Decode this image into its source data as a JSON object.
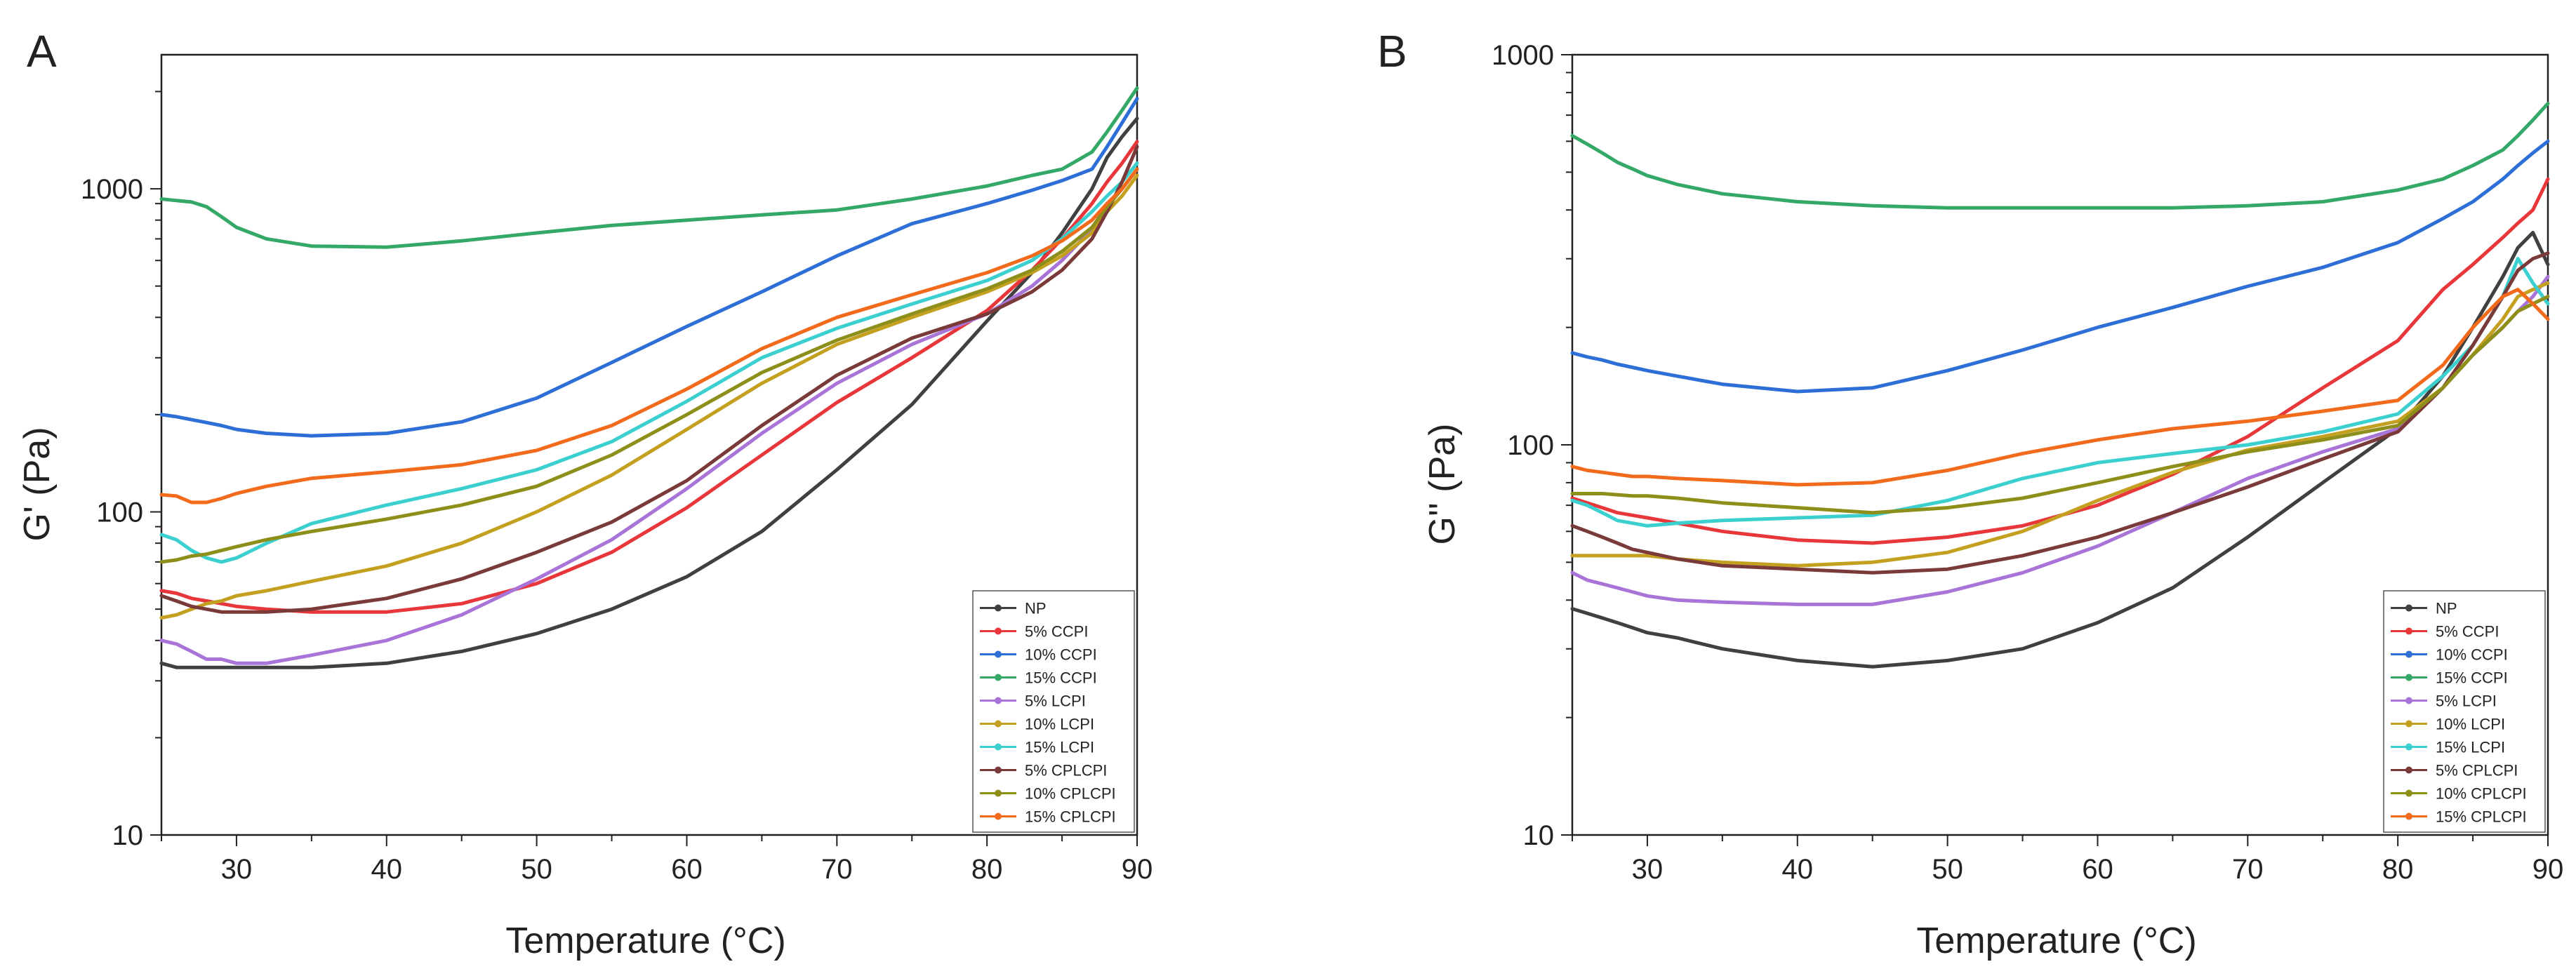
{
  "chart_data": [
    {
      "type": "line",
      "panel_label": "A",
      "xlabel": "Temperature (°C)",
      "ylabel": "G' (Pa)",
      "xlim": [
        25,
        90
      ],
      "ylim": [
        10,
        2600
      ],
      "yscale": "log",
      "x_ticks": [
        30,
        40,
        50,
        60,
        70,
        80,
        90
      ],
      "y_ticks": [
        10,
        100,
        1000
      ],
      "legend_position": "bottom-right",
      "x": [
        25,
        26,
        27,
        28,
        29,
        30,
        32,
        35,
        40,
        45,
        50,
        55,
        60,
        65,
        70,
        75,
        80,
        83,
        85,
        87,
        88,
        89,
        90
      ],
      "series": [
        {
          "name": "NP",
          "color": "#404040",
          "values": [
            34,
            33,
            33,
            33,
            33,
            33,
            33,
            33,
            34,
            37,
            42,
            50,
            63,
            87,
            135,
            215,
            390,
            550,
            730,
            1000,
            1250,
            1450,
            1650
          ]
        },
        {
          "name": "5% CCPI",
          "color": "#e8373b",
          "values": [
            57,
            56,
            54,
            53,
            52,
            51,
            50,
            49,
            49,
            52,
            60,
            75,
            103,
            150,
            218,
            300,
            420,
            560,
            700,
            900,
            1050,
            1200,
            1400
          ]
        },
        {
          "name": "10% CCPI",
          "color": "#2d6fd6",
          "values": [
            200,
            197,
            193,
            189,
            185,
            180,
            175,
            172,
            175,
            190,
            225,
            290,
            375,
            480,
            620,
            780,
            900,
            990,
            1060,
            1150,
            1350,
            1600,
            1900
          ]
        },
        {
          "name": "15% CCPI",
          "color": "#33a867",
          "values": [
            930,
            920,
            910,
            880,
            820,
            760,
            700,
            665,
            660,
            690,
            730,
            770,
            800,
            830,
            860,
            930,
            1020,
            1100,
            1150,
            1300,
            1500,
            1750,
            2050
          ]
        },
        {
          "name": "5% LCPI",
          "color": "#a874d8",
          "values": [
            40,
            39,
            37,
            35,
            35,
            34,
            34,
            36,
            40,
            48,
            62,
            82,
            118,
            175,
            250,
            330,
            410,
            500,
            600,
            750,
            900,
            1000,
            1150
          ]
        },
        {
          "name": "10% LCPI",
          "color": "#c4a020",
          "values": [
            47,
            48,
            50,
            52,
            53,
            55,
            57,
            61,
            68,
            80,
            100,
            130,
            180,
            250,
            330,
            400,
            480,
            550,
            620,
            730,
            850,
            950,
            1100
          ]
        },
        {
          "name": "15% LCPI",
          "color": "#3ccfcf",
          "values": [
            85,
            82,
            76,
            72,
            70,
            72,
            80,
            92,
            105,
            118,
            135,
            165,
            220,
            300,
            370,
            440,
            520,
            600,
            700,
            850,
            950,
            1050,
            1200
          ]
        },
        {
          "name": "5% CPLCPI",
          "color": "#7a3a3a",
          "values": [
            55,
            53,
            51,
            50,
            49,
            49,
            49,
            50,
            54,
            62,
            75,
            93,
            125,
            185,
            265,
            345,
            410,
            480,
            560,
            700,
            850,
            1050,
            1350
          ]
        },
        {
          "name": "10% CPLCPI",
          "color": "#8e8e1a",
          "values": [
            70,
            71,
            73,
            74,
            76,
            78,
            82,
            87,
            95,
            105,
            120,
            150,
            200,
            270,
            340,
            410,
            490,
            560,
            640,
            760,
            880,
            1000,
            1150
          ]
        },
        {
          "name": "15% CPLCPI",
          "color": "#f26a1b",
          "values": [
            113,
            112,
            107,
            107,
            110,
            114,
            120,
            127,
            133,
            140,
            155,
            185,
            240,
            320,
            400,
            470,
            550,
            620,
            690,
            800,
            900,
            1000,
            1150
          ]
        }
      ]
    },
    {
      "type": "line",
      "panel_label": "B",
      "xlabel": "Temperature (°C)",
      "ylabel": "G'' (Pa)",
      "xlim": [
        25,
        90
      ],
      "ylim": [
        10,
        1000
      ],
      "yscale": "log",
      "x_ticks": [
        30,
        40,
        50,
        60,
        70,
        80,
        90
      ],
      "y_ticks": [
        10,
        100,
        1000
      ],
      "legend_position": "bottom-right",
      "x": [
        25,
        26,
        27,
        28,
        29,
        30,
        32,
        35,
        40,
        45,
        50,
        55,
        60,
        65,
        70,
        75,
        80,
        83,
        85,
        87,
        88,
        89,
        90
      ],
      "series": [
        {
          "name": "NP",
          "color": "#404040",
          "values": [
            38,
            37,
            36,
            35,
            34,
            33,
            32,
            30,
            28,
            27,
            28,
            30,
            35,
            43,
            58,
            80,
            110,
            150,
            200,
            270,
            320,
            350,
            290
          ]
        },
        {
          "name": "5% CCPI",
          "color": "#e8373b",
          "values": [
            73,
            71,
            69,
            67,
            66,
            65,
            63,
            60,
            57,
            56,
            58,
            62,
            70,
            84,
            105,
            140,
            185,
            250,
            290,
            340,
            370,
            400,
            480
          ]
        },
        {
          "name": "10% CCPI",
          "color": "#2d6fd6",
          "values": [
            172,
            168,
            165,
            161,
            158,
            155,
            150,
            143,
            137,
            140,
            155,
            175,
            200,
            225,
            255,
            285,
            330,
            380,
            420,
            480,
            520,
            560,
            600
          ]
        },
        {
          "name": "15% CCPI",
          "color": "#33a867",
          "values": [
            620,
            590,
            560,
            530,
            510,
            490,
            465,
            440,
            420,
            410,
            405,
            405,
            405,
            405,
            410,
            420,
            450,
            480,
            520,
            570,
            620,
            680,
            750
          ]
        },
        {
          "name": "5% LCPI",
          "color": "#a874d8",
          "values": [
            47,
            45,
            44,
            43,
            42,
            41,
            40,
            39.5,
            39,
            39,
            42,
            47,
            55,
            67,
            82,
            96,
            110,
            140,
            170,
            200,
            220,
            240,
            270
          ]
        },
        {
          "name": "10% LCPI",
          "color": "#c4a020",
          "values": [
            52,
            52,
            52,
            52,
            52,
            52,
            51,
            50,
            49,
            50,
            53,
            60,
            72,
            85,
            97,
            105,
            115,
            140,
            170,
            210,
            240,
            250,
            260
          ]
        },
        {
          "name": "15% LCPI",
          "color": "#3ccfcf",
          "values": [
            72,
            70,
            67,
            64,
            63,
            62,
            63,
            64,
            65,
            66,
            72,
            82,
            90,
            95,
            100,
            108,
            120,
            150,
            180,
            240,
            300,
            260,
            230
          ]
        },
        {
          "name": "5% CPLCPI",
          "color": "#7a3a3a",
          "values": [
            62,
            60,
            58,
            56,
            54,
            53,
            51,
            49,
            48,
            47,
            48,
            52,
            58,
            67,
            78,
            92,
            108,
            140,
            180,
            240,
            280,
            300,
            310
          ]
        },
        {
          "name": "10% CPLCPI",
          "color": "#8e8e1a",
          "values": [
            75,
            75,
            75,
            74.5,
            74,
            74,
            73,
            71,
            69,
            67,
            69,
            73,
            80,
            88,
            96,
            103,
            112,
            140,
            170,
            200,
            220,
            230,
            240
          ]
        },
        {
          "name": "15% CPLCPI",
          "color": "#f26a1b",
          "values": [
            88,
            86,
            85,
            84,
            83,
            83,
            82,
            81,
            79,
            80,
            86,
            95,
            103,
            110,
            115,
            122,
            130,
            160,
            200,
            240,
            250,
            230,
            210
          ]
        }
      ]
    }
  ]
}
